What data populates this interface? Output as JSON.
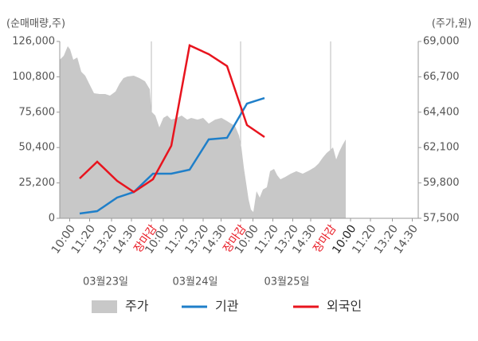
{
  "chart_data": {
    "type": "line",
    "y_axis_label": "(순매매량,주)",
    "y2_axis_label": "(주가,원)",
    "xlim": [
      0,
      18
    ],
    "ylim": [
      0,
      126000
    ],
    "yticks": [
      0,
      {
        "value": 25200,
        "label": "25,200"
      },
      {
        "value": 50400,
        "label": "50,400"
      },
      {
        "value": 75600,
        "label": "75,600"
      },
      {
        "value": 100800,
        "label": "100,800"
      },
      {
        "value": 126000,
        "label": "126,000"
      }
    ],
    "y2lim": [
      57500,
      69000
    ],
    "y2ticks": [
      {
        "value": 57500,
        "label": "57,500"
      },
      {
        "value": 59800,
        "label": "59,800"
      },
      {
        "value": 62100,
        "label": "62,100"
      },
      {
        "value": 64400,
        "label": "64,400"
      },
      {
        "value": 66700,
        "label": "66,700"
      },
      {
        "value": 69000,
        "label": "69,000"
      }
    ],
    "xticks": [
      {
        "value": 0.5,
        "label": "10:00"
      },
      {
        "value": 1.5,
        "label": "11:20"
      },
      {
        "value": 2.6,
        "label": "13:20"
      },
      {
        "value": 3.6,
        "label": "14:30"
      },
      {
        "value": 4.6,
        "label": "장마감",
        "color": "#e8141e",
        "grid": true
      },
      {
        "value": 5.2,
        "label": "10:00"
      },
      {
        "value": 6.2,
        "label": "11:20"
      },
      {
        "value": 7.2,
        "label": "13:20"
      },
      {
        "value": 8.1,
        "label": "14:30"
      },
      {
        "value": 9.08,
        "label": "장마감",
        "color": "#e8141e",
        "grid": true
      },
      {
        "value": 9.7,
        "label": "10:00"
      },
      {
        "value": 10.7,
        "label": "11:20"
      },
      {
        "value": 11.7,
        "label": "13:20"
      },
      {
        "value": 12.6,
        "label": "14:30"
      },
      {
        "value": 13.6,
        "label": "장마감",
        "color": "#e8141e",
        "grid": true
      },
      {
        "value": 14.6,
        "label": "10:00",
        "color": "#222222"
      },
      {
        "value": 15.6,
        "label": "11:20"
      },
      {
        "value": 16.7,
        "label": "13:20"
      },
      {
        "value": 17.7,
        "label": "14:30"
      }
    ],
    "dates": [
      {
        "value": 2.3,
        "label": "03월23일"
      },
      {
        "value": 6.8,
        "label": "03월24일"
      },
      {
        "value": 11.4,
        "label": "03월25일"
      }
    ],
    "legend": "bottom",
    "series": [
      {
        "name": "주가",
        "color": "#c8c8c8",
        "style": "area",
        "axis": "y2",
        "x": [
          0,
          0.2,
          0.4,
          0.52,
          0.68,
          0.88,
          1.08,
          1.28,
          1.48,
          1.72,
          2,
          2.28,
          2.52,
          2.8,
          3,
          3.2,
          3.4,
          3.72,
          4,
          4.28,
          4.52,
          4.6,
          4.8,
          5,
          5.2,
          5.4,
          5.6,
          5.88,
          6.12,
          6.4,
          6.6,
          6.92,
          7.2,
          7.48,
          7.8,
          8.12,
          8.4,
          8.6,
          8.8,
          9,
          9.12,
          9.24,
          9.36,
          9.48,
          9.6,
          9.72,
          9.88,
          10.04,
          10.2,
          10.4,
          10.56,
          10.76,
          10.92,
          11.08,
          11.32,
          11.6,
          11.88,
          12.2,
          12.52,
          12.8,
          13,
          13.2,
          13.4,
          13.6,
          13.72,
          13.88,
          14.04,
          14.2,
          14.36
        ],
        "values": [
          67810,
          68070,
          68690,
          68480,
          67810,
          67960,
          67030,
          66770,
          66250,
          65630,
          65580,
          65580,
          65480,
          65740,
          66250,
          66620,
          66720,
          66770,
          66620,
          66410,
          65890,
          64440,
          64180,
          63410,
          64030,
          64180,
          63920,
          64030,
          64180,
          63920,
          64030,
          63920,
          64030,
          63660,
          63920,
          64030,
          63820,
          63660,
          63510,
          62890,
          62110,
          60820,
          59780,
          58740,
          58070,
          57910,
          59260,
          58850,
          59370,
          59520,
          60560,
          60710,
          60300,
          60040,
          60190,
          60400,
          60560,
          60400,
          60610,
          60820,
          61070,
          61440,
          61750,
          61960,
          62110,
          61330,
          61850,
          62270,
          62630
        ]
      },
      {
        "name": "기관",
        "color": "#1f7fc9",
        "x": [
          1,
          1.88,
          2.88,
          3.72,
          4.68,
          5.6,
          6.52,
          7.48,
          8.4,
          9.4,
          10.28
        ],
        "values": [
          3410,
          5110,
          14760,
          18730,
          31790,
          31790,
          34620,
          56190,
          57330,
          81730,
          85700
        ]
      },
      {
        "name": "외국인",
        "color": "#e8141e",
        "x": [
          1,
          1.88,
          2.88,
          3.72,
          4.68,
          5.6,
          6.52,
          7.48,
          8.4,
          9.4,
          10.28
        ],
        "values": [
          28380,
          40300,
          26680,
          18730,
          27810,
          51650,
          123170,
          116930,
          108410,
          66410,
          57900
        ]
      }
    ]
  }
}
